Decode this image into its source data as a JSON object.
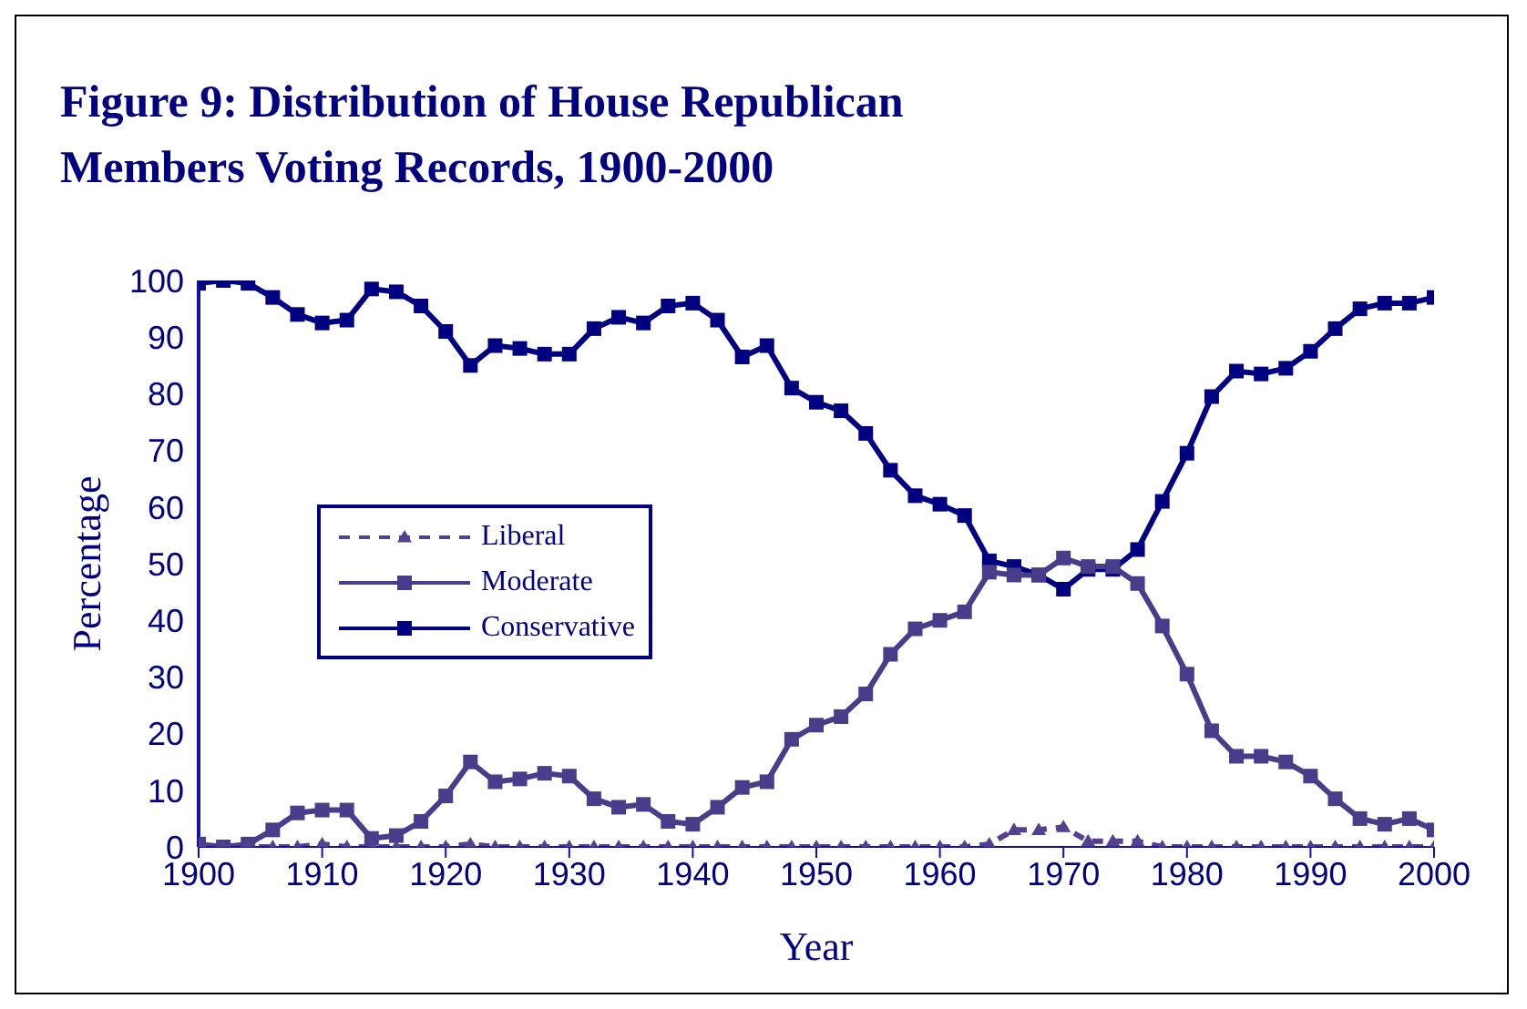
{
  "chart_data": {
    "type": "line",
    "title": "Figure 9: Distribution of House Republican Members Voting Records, 1900-2000",
    "xlabel": "Year",
    "ylabel": "Percentage",
    "x": [
      1900,
      1902,
      1904,
      1906,
      1908,
      1910,
      1912,
      1914,
      1916,
      1918,
      1920,
      1922,
      1924,
      1926,
      1928,
      1930,
      1932,
      1934,
      1936,
      1938,
      1940,
      1942,
      1944,
      1946,
      1948,
      1950,
      1952,
      1954,
      1956,
      1958,
      1960,
      1962,
      1964,
      1966,
      1968,
      1970,
      1972,
      1974,
      1976,
      1978,
      1980,
      1982,
      1984,
      1986,
      1988,
      1990,
      1992,
      1994,
      1996,
      1998,
      2000
    ],
    "series": [
      {
        "name": "Liberal",
        "color": "#55408f",
        "marker": "triangle",
        "line_style": "dashed",
        "values": [
          0,
          0,
          0,
          0,
          0,
          0.5,
          0,
          0,
          0,
          0,
          0,
          0.5,
          0,
          0,
          0,
          0,
          0,
          0,
          0,
          0,
          0,
          0,
          0,
          0,
          0,
          0,
          0,
          0,
          0,
          0,
          0,
          0,
          0.5,
          3,
          3,
          3.5,
          1,
          1,
          1,
          0,
          0,
          0,
          0,
          0,
          0,
          0,
          0,
          0,
          0,
          0,
          0
        ]
      },
      {
        "name": "Moderate",
        "color": "#483d8b",
        "marker": "square",
        "line_style": "solid",
        "values": [
          0.5,
          0,
          0.5,
          3,
          6,
          6.5,
          6.5,
          1.5,
          2,
          4.5,
          9,
          15,
          11.5,
          12,
          13,
          12.5,
          8.5,
          7,
          7.5,
          4.5,
          4,
          7,
          10.5,
          11.5,
          19,
          21.5,
          23,
          27,
          34,
          38.5,
          40,
          41.5,
          48.5,
          48,
          48,
          51,
          49.5,
          49.5,
          46.5,
          39,
          30.5,
          20.5,
          16,
          16,
          15,
          12.5,
          8.5,
          5,
          4,
          5,
          3
        ]
      },
      {
        "name": "Conservative",
        "color": "#000080",
        "marker": "square",
        "line_style": "solid",
        "values": [
          99.5,
          100,
          99.5,
          97,
          94,
          92.5,
          93,
          98.5,
          98,
          95.5,
          91,
          85,
          88.5,
          88,
          87,
          87,
          91.5,
          93.5,
          92.5,
          95.5,
          96,
          93,
          86.5,
          88.5,
          81,
          78.5,
          77,
          73,
          66.5,
          62,
          60.5,
          58.5,
          50.5,
          49.5,
          48,
          45.5,
          49,
          49,
          52.5,
          61,
          69.5,
          79.5,
          84,
          83.5,
          84.5,
          87.5,
          91.5,
          95,
          96,
          96,
          97
        ]
      }
    ],
    "xlim": [
      1900,
      2000
    ],
    "xticks": [
      1900,
      1910,
      1920,
      1930,
      1940,
      1950,
      1960,
      1970,
      1980,
      1990,
      2000
    ],
    "ylim": [
      0,
      100
    ],
    "yticks": [
      0,
      10,
      20,
      30,
      40,
      50,
      60,
      70,
      80,
      90,
      100
    ],
    "grid": false,
    "legend": "left"
  }
}
